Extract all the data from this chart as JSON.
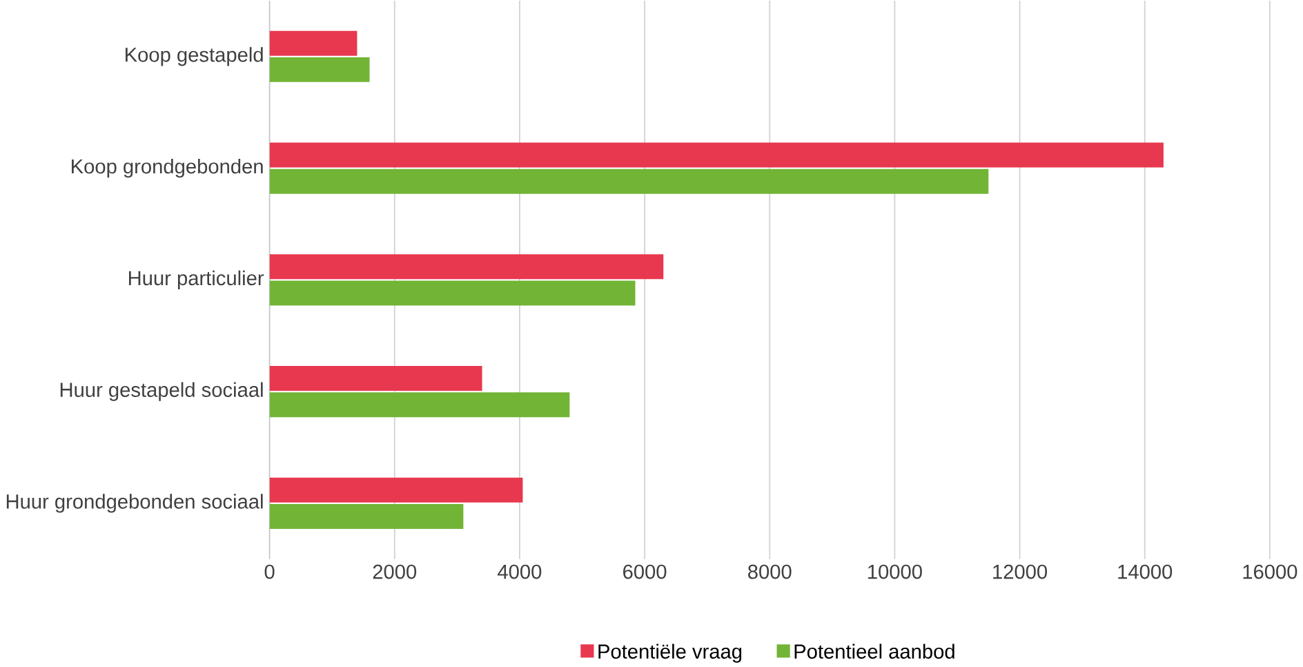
{
  "chart_data": {
    "type": "bar",
    "orientation": "horizontal",
    "categories": [
      "Koop gestapeld",
      "Koop grondgebonden",
      "Huur particulier",
      "Huur gestapeld sociaal",
      "Huur grondgebonden sociaal"
    ],
    "series": [
      {
        "name": "Potentiële vraag",
        "color": "#e8384f",
        "values": [
          1400,
          14300,
          6300,
          3400,
          4050
        ]
      },
      {
        "name": "Potentieel aanbod",
        "color": "#72b436",
        "values": [
          1600,
          11500,
          5850,
          4800,
          3100
        ]
      }
    ],
    "xlim": [
      0,
      16000
    ],
    "xticks": [
      0,
      2000,
      4000,
      6000,
      8000,
      10000,
      12000,
      14000,
      16000
    ],
    "grid": "x",
    "legend": "bottom"
  }
}
